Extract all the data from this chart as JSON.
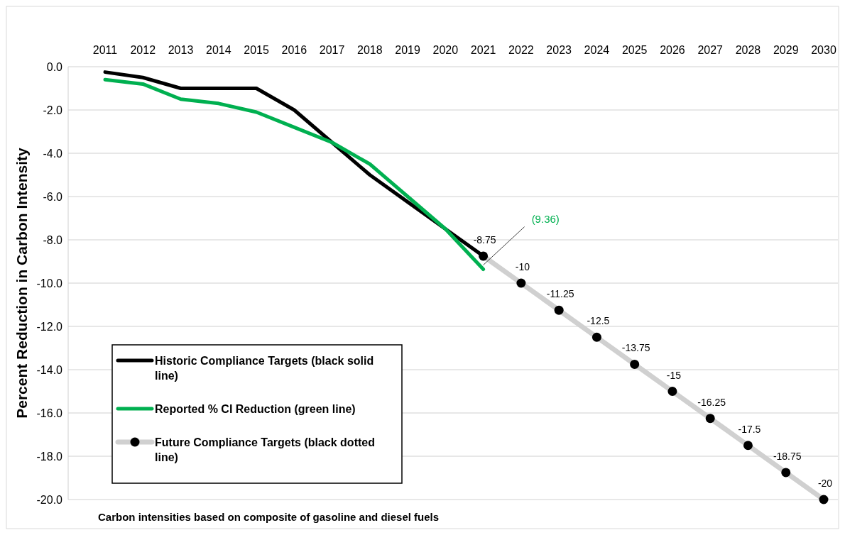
{
  "chart_data": {
    "type": "line",
    "ylabel": "Percent Reduction in Carbon Intensity",
    "categories": [
      "2011",
      "2012",
      "2013",
      "2014",
      "2015",
      "2016",
      "2017",
      "2018",
      "2019",
      "2020",
      "2021",
      "2022",
      "2023",
      "2024",
      "2025",
      "2026",
      "2027",
      "2028",
      "2029",
      "2030"
    ],
    "series": [
      {
        "name": "Historic Compliance Targets (black solid line)",
        "color": "#000000",
        "marker": "none",
        "values": [
          -0.25,
          -0.5,
          -1.0,
          -1.0,
          -1.0,
          -2.0,
          -3.5,
          -5.0,
          -6.25,
          -7.5,
          -8.75,
          null,
          null,
          null,
          null,
          null,
          null,
          null,
          null,
          null
        ]
      },
      {
        "name": "Reported % CI Reduction (green line)",
        "color": "#00b050",
        "marker": "none",
        "values": [
          -0.6,
          -0.8,
          -1.5,
          -1.7,
          -2.1,
          -2.8,
          -3.5,
          -4.5,
          -6.0,
          -7.5,
          -9.36,
          null,
          null,
          null,
          null,
          null,
          null,
          null,
          null,
          null
        ]
      },
      {
        "name": "Future Compliance Targets (black dotted line)",
        "color": "#d0d0d0",
        "marker": "circle",
        "values": [
          null,
          null,
          null,
          null,
          null,
          null,
          null,
          null,
          null,
          null,
          -8.75,
          -10,
          -11.25,
          -12.5,
          -13.75,
          -15,
          -16.25,
          -17.5,
          -18.75,
          -20
        ],
        "value_labels": [
          null,
          null,
          null,
          null,
          null,
          null,
          null,
          null,
          null,
          null,
          "-8.75",
          "-10",
          "-11.25",
          "-12.5",
          "-13.75",
          "-15",
          "-16.25",
          "-17.5",
          "-18.75",
          "-20"
        ]
      }
    ],
    "ylim": [
      -20,
      0
    ],
    "yticks": [
      {
        "value": 0,
        "label": "0.0"
      },
      {
        "value": -2,
        "label": "-2.0"
      },
      {
        "value": -4,
        "label": "-4.0"
      },
      {
        "value": -6,
        "label": "-6.0"
      },
      {
        "value": -8,
        "label": "-8.0"
      },
      {
        "value": -10,
        "label": "-10.0"
      },
      {
        "value": -12,
        "label": "-12.0"
      },
      {
        "value": -14,
        "label": "-14.0"
      },
      {
        "value": -16,
        "label": "-16.0"
      },
      {
        "value": -18,
        "label": "-18.0"
      },
      {
        "value": -20,
        "label": "-20.0"
      }
    ],
    "grid": "y",
    "legend": "bottom left",
    "line_style": "solid",
    "annotations": [
      {
        "text": "(9.36)",
        "x": "2021",
        "y": -9.36
      },
      "Carbon intensities based on composite of gasoline and diesel fuels"
    ]
  }
}
